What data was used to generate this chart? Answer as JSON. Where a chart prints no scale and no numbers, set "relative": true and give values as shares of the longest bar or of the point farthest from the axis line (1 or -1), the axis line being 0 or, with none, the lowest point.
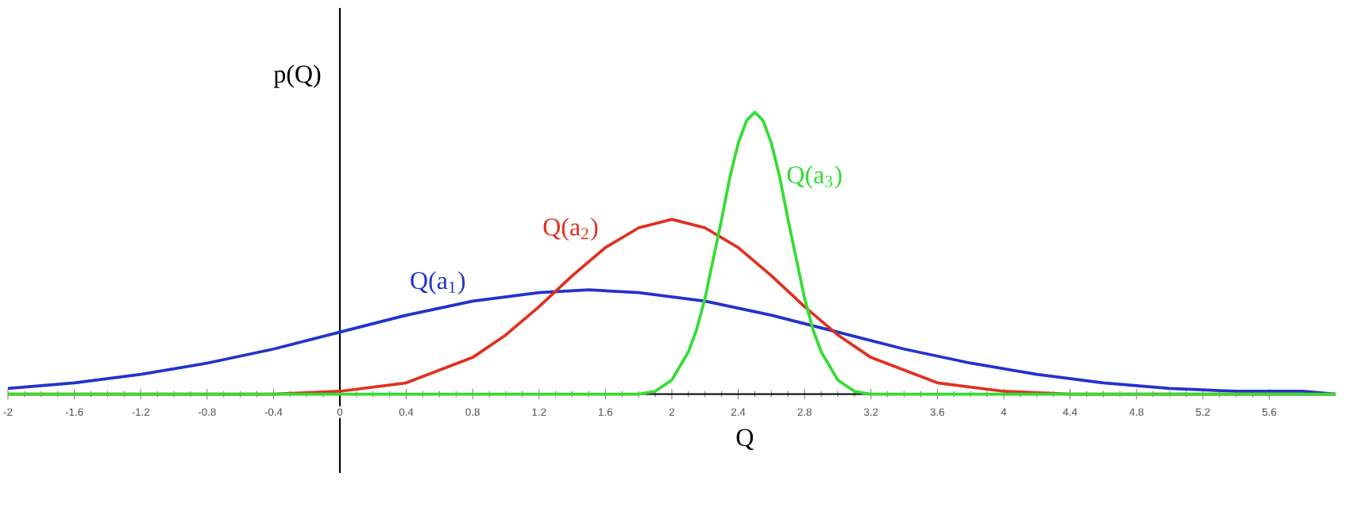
{
  "chart_data": {
    "type": "line",
    "relative": true,
    "xlabel": "Q",
    "ylabel": "p(Q)",
    "marker": "none",
    "line_style": "solid",
    "xlim": [
      -2,
      6
    ],
    "xticks": [
      -2,
      -1.6,
      -1.2,
      -0.8,
      -0.4,
      0,
      0.4,
      0.8,
      1.2,
      1.6,
      2,
      2.4,
      2.8,
      3.2,
      3.6,
      4,
      4.4,
      4.8,
      5.2,
      5.6
    ],
    "series": [
      {
        "name": "Q(a$_{1}$)",
        "color": "#2233cc",
        "x": [
          -2,
          -1.6,
          -1.2,
          -0.8,
          -0.4,
          0,
          0.4,
          0.8,
          1.2,
          1.5,
          1.8,
          2.2,
          2.6,
          3.0,
          3.4,
          3.8,
          4.2,
          4.6,
          5.0,
          5.4,
          5.8,
          6
        ],
        "values": [
          0.02,
          0.04,
          0.07,
          0.11,
          0.16,
          0.22,
          0.28,
          0.33,
          0.36,
          0.37,
          0.36,
          0.33,
          0.28,
          0.22,
          0.16,
          0.11,
          0.07,
          0.04,
          0.02,
          0.01,
          0.01,
          0
        ]
      },
      {
        "name": "Q(a$_{2}$)",
        "color": "#e03020",
        "x": [
          -2,
          -0.4,
          0,
          0.4,
          0.8,
          1.0,
          1.2,
          1.4,
          1.6,
          1.8,
          2.0,
          2.2,
          2.4,
          2.6,
          2.8,
          3.0,
          3.2,
          3.6,
          4.0,
          4.4,
          6
        ],
        "values": [
          0,
          0,
          0.01,
          0.04,
          0.13,
          0.21,
          0.31,
          0.42,
          0.52,
          0.59,
          0.62,
          0.59,
          0.52,
          0.42,
          0.31,
          0.21,
          0.13,
          0.04,
          0.01,
          0,
          0
        ]
      },
      {
        "name": "Q(a$_{3}$)",
        "color": "#33dd33",
        "x": [
          -2,
          1.8,
          1.9,
          2.0,
          2.1,
          2.15,
          2.2,
          2.25,
          2.3,
          2.35,
          2.4,
          2.45,
          2.5,
          2.55,
          2.6,
          2.65,
          2.7,
          2.75,
          2.8,
          2.85,
          2.9,
          3.0,
          3.1,
          3.2,
          6
        ],
        "values": [
          0,
          0,
          0.01,
          0.05,
          0.15,
          0.23,
          0.34,
          0.48,
          0.62,
          0.77,
          0.89,
          0.97,
          1,
          0.97,
          0.89,
          0.77,
          0.62,
          0.48,
          0.34,
          0.23,
          0.15,
          0.05,
          0.01,
          0,
          0
        ]
      }
    ]
  }
}
